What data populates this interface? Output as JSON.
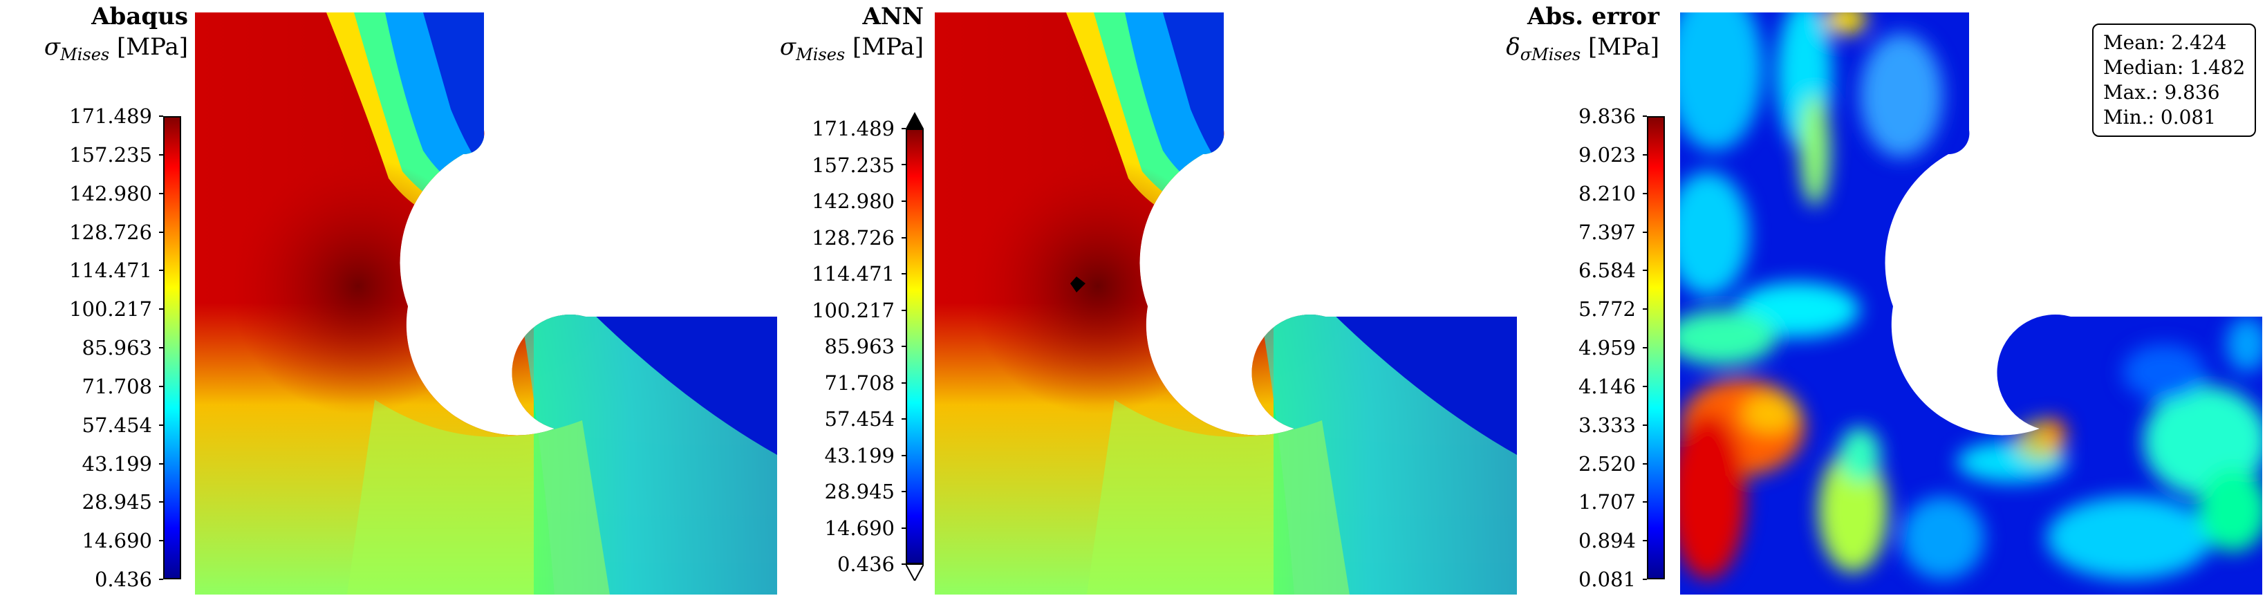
{
  "panels": [
    {
      "title": "Abaqus",
      "quantity_symbol": "σ",
      "quantity_subscript": "Mises",
      "quantity_unit": "[MPa]",
      "ticks": [
        "171.489",
        "157.235",
        "142.980",
        "128.726",
        "114.471",
        "100.217",
        "85.963",
        "71.708",
        "57.454",
        "43.199",
        "28.945",
        "14.690",
        "0.436"
      ]
    },
    {
      "title": "ANN",
      "quantity_symbol": "σ",
      "quantity_subscript": "Mises",
      "quantity_unit": "[MPa]",
      "ticks": [
        "171.489",
        "157.235",
        "142.980",
        "128.726",
        "114.471",
        "100.217",
        "85.963",
        "71.708",
        "57.454",
        "43.199",
        "28.945",
        "14.690",
        "0.436"
      ]
    },
    {
      "title": "Abs. error",
      "quantity_symbol": "δ",
      "quantity_subscript": "σMises",
      "quantity_unit": "[MPa]",
      "ticks": [
        "9.836",
        "9.023",
        "8.210",
        "7.397",
        "6.584",
        "5.772",
        "4.959",
        "4.146",
        "3.333",
        "2.520",
        "1.707",
        "0.894",
        "0.081"
      ]
    }
  ],
  "stats": {
    "mean": "Mean: 2.424",
    "median": "Median: 1.482",
    "max": "Max.: 9.836",
    "min": "Min.: 0.081"
  },
  "colors": {
    "jet_dark_red": "#800000",
    "jet_red": "#ff0000",
    "jet_yellow": "#ffff00",
    "jet_cyan": "#00ffff",
    "jet_blue": "#0000ff",
    "jet_dark_blue": "#00008f"
  }
}
